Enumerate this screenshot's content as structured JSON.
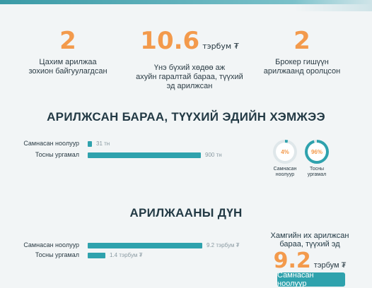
{
  "stats": [
    {
      "value": "2",
      "unit": "",
      "caption_lines": [
        "Цахим арилжаа",
        "зохион байгуулагдсан"
      ]
    },
    {
      "value": "10.6",
      "unit": "тэрбум ₮",
      "caption_lines": [
        "Үнэ бүхий хөдөө аж",
        "ахуйн гаралтай бараа, түүхий",
        "эд арилжсан"
      ]
    },
    {
      "value": "2",
      "unit": "",
      "caption_lines": [
        "Брокер гишүүн",
        "арилжаанд оролцсон"
      ]
    }
  ],
  "volume_section": {
    "title": "АРИЛЖСАН БАРАА, ТҮҮХИЙ ЭДИЙН ХЭМЖЭЭ",
    "rows": [
      {
        "label": "Самнасан ноолуур",
        "value": 31,
        "value_label": "31 тн"
      },
      {
        "label": "Тосны ургамал",
        "value": 900,
        "value_label": "900 тн"
      }
    ],
    "donuts": [
      {
        "percent": 4,
        "percent_label": "4%",
        "caption_lines": [
          "Самнасан",
          "ноолуур"
        ],
        "ring_color": "#2fa2ad"
      },
      {
        "percent": 96,
        "percent_label": "96%",
        "caption_lines": [
          "Тосны",
          "ургамал"
        ],
        "ring_color": "#2fa2ad"
      }
    ]
  },
  "value_section": {
    "title": "АРИЛЖААНЫ ДҮН",
    "rows": [
      {
        "label": "Самнасан ноолуур",
        "value": 9.2,
        "value_label": "9.2 тэрбум ₮"
      },
      {
        "label": "Тосны ургамал",
        "value": 1.4,
        "value_label": "1.4 тэрбум ₮"
      }
    ]
  },
  "max_trade": {
    "caption_lines": [
      "Хамгийн их арилжсан",
      "бараа, түүхий эд"
    ],
    "value": "9.2",
    "unit": "тэрбум ₮",
    "button_label": "Самнасан ноолуур"
  },
  "colors": {
    "accent": "#f39a4c",
    "bar": "#2fa2ad",
    "text": "#233a45",
    "background": "#f2f5f6"
  }
}
